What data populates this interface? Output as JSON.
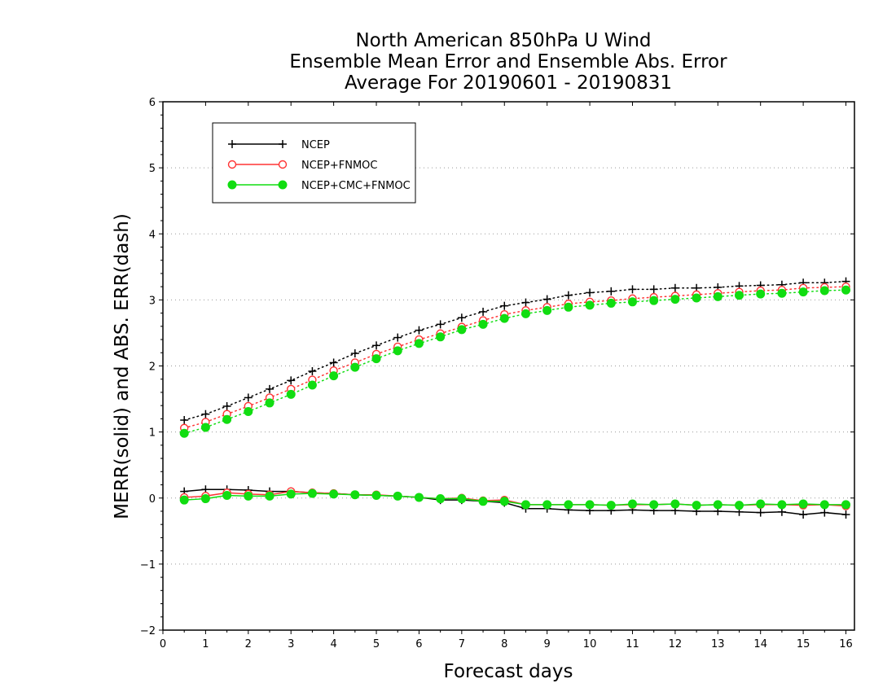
{
  "chart_data": {
    "type": "line",
    "title": "North American 850hPa U Wind",
    "subtitle": "Ensemble Mean Error and Ensemble Abs. Error",
    "subtitle2": "Average For 20190601 - 20190831",
    "xlabel": "Forecast days",
    "ylabel": "MERR(solid) and ABS. ERR(dash)",
    "xlim": [
      0,
      16.2
    ],
    "ylim": [
      -2,
      6
    ],
    "xticks": [
      "0",
      "1",
      "2",
      "3",
      "4",
      "5",
      "6",
      "7",
      "8",
      "9",
      "10",
      "11",
      "12",
      "13",
      "14",
      "15",
      "16"
    ],
    "yticks": [
      "−2",
      "−1",
      "0",
      "1",
      "2",
      "3",
      "4",
      "5",
      "6"
    ],
    "grid": "horizontal dotted",
    "legend_position": "top-left",
    "x": [
      0.5,
      1,
      1.5,
      2,
      2.5,
      3,
      3.5,
      4,
      4.5,
      5,
      5.5,
      6,
      6.5,
      7,
      7.5,
      8,
      8.5,
      9,
      9.5,
      10,
      10.5,
      11,
      11.5,
      12,
      12.5,
      13,
      13.5,
      14,
      14.5,
      15,
      15.5,
      16
    ],
    "series": [
      {
        "name": "NCEP",
        "color": "#000000",
        "marker": "plus",
        "merr": [
          0.1,
          0.13,
          0.13,
          0.12,
          0.1,
          0.1,
          0.08,
          0.07,
          0.05,
          0.04,
          0.03,
          0.01,
          -0.03,
          -0.03,
          -0.05,
          -0.07,
          -0.16,
          -0.16,
          -0.18,
          -0.19,
          -0.19,
          -0.18,
          -0.19,
          -0.19,
          -0.2,
          -0.2,
          -0.21,
          -0.22,
          -0.21,
          -0.25,
          -0.22,
          -0.25
        ],
        "abs_err": [
          1.18,
          1.27,
          1.39,
          1.52,
          1.65,
          1.78,
          1.92,
          2.05,
          2.19,
          2.31,
          2.43,
          2.54,
          2.63,
          2.73,
          2.82,
          2.91,
          2.96,
          3.01,
          3.07,
          3.11,
          3.13,
          3.16,
          3.16,
          3.18,
          3.18,
          3.19,
          3.21,
          3.22,
          3.23,
          3.26,
          3.26,
          3.28
        ]
      },
      {
        "name": "NCEP+FNMOC",
        "color": "#ff3333",
        "marker": "open-circle",
        "merr": [
          0.01,
          0.03,
          0.08,
          0.06,
          0.05,
          0.1,
          0.08,
          0.07,
          0.05,
          0.05,
          0.03,
          0.01,
          -0.01,
          0,
          -0.04,
          -0.03,
          -0.1,
          -0.1,
          -0.1,
          -0.1,
          -0.11,
          -0.1,
          -0.1,
          -0.09,
          -0.11,
          -0.1,
          -0.11,
          -0.1,
          -0.1,
          -0.11,
          -0.1,
          -0.12
        ],
        "abs_err": [
          1.06,
          1.15,
          1.27,
          1.39,
          1.52,
          1.65,
          1.79,
          1.93,
          2.05,
          2.18,
          2.29,
          2.4,
          2.49,
          2.59,
          2.69,
          2.78,
          2.84,
          2.89,
          2.94,
          2.97,
          2.99,
          3.02,
          3.04,
          3.06,
          3.08,
          3.1,
          3.12,
          3.14,
          3.15,
          3.18,
          3.19,
          3.2
        ]
      },
      {
        "name": "NCEP+CMC+FNMOC",
        "color": "#11dd11",
        "marker": "filled-circle",
        "merr": [
          -0.03,
          -0.01,
          0.04,
          0.03,
          0.03,
          0.06,
          0.07,
          0.06,
          0.05,
          0.04,
          0.03,
          0.01,
          -0.01,
          -0.01,
          -0.05,
          -0.05,
          -0.1,
          -0.1,
          -0.1,
          -0.1,
          -0.11,
          -0.09,
          -0.1,
          -0.09,
          -0.11,
          -0.1,
          -0.11,
          -0.09,
          -0.1,
          -0.09,
          -0.1,
          -0.1
        ],
        "abs_err": [
          0.98,
          1.07,
          1.19,
          1.31,
          1.44,
          1.57,
          1.71,
          1.85,
          1.98,
          2.11,
          2.23,
          2.34,
          2.44,
          2.55,
          2.63,
          2.72,
          2.79,
          2.84,
          2.89,
          2.92,
          2.95,
          2.97,
          2.99,
          3.01,
          3.03,
          3.05,
          3.07,
          3.09,
          3.1,
          3.12,
          3.14,
          3.15
        ]
      }
    ]
  }
}
